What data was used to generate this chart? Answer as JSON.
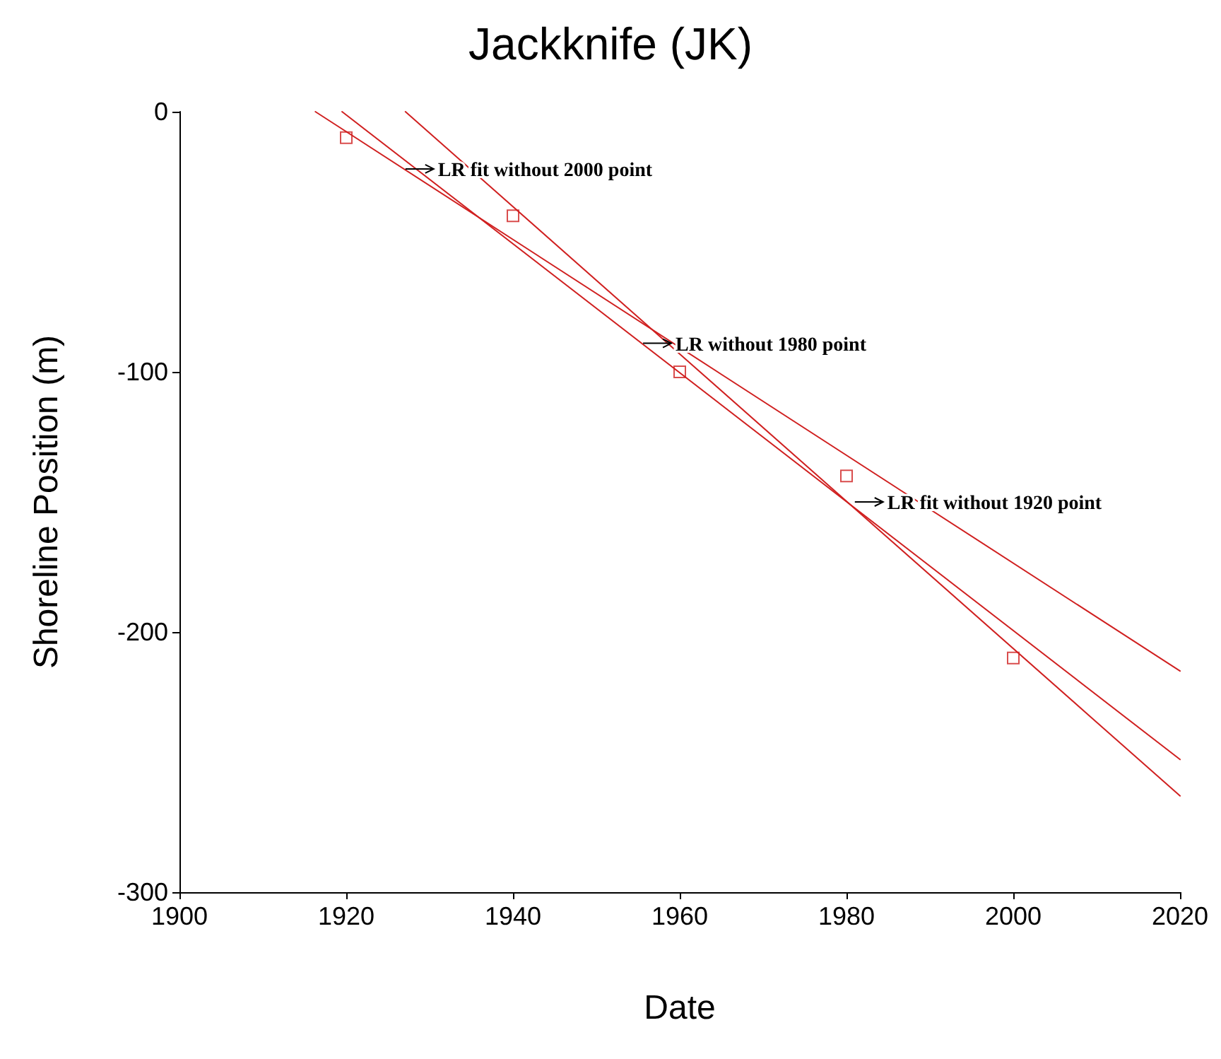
{
  "chart_data": {
    "type": "scatter",
    "title": "Jackknife (JK)",
    "xlabel": "Date",
    "ylabel": "Shoreline Position (m)",
    "xlim": [
      1900,
      2020
    ],
    "xticks": [
      1900,
      1920,
      1940,
      1960,
      1980,
      2000,
      2020
    ],
    "ylim": [
      -300,
      0
    ],
    "yticks": [
      -300,
      -200,
      -100,
      0
    ],
    "grid": false,
    "series": [
      {
        "color": "#d02020",
        "marker": "square",
        "x": [
          1920,
          1940,
          1960,
          1980,
          2000
        ],
        "values": [
          -10,
          -40,
          -100,
          -140,
          -210
        ]
      },
      {
        "type": "line",
        "color": "#d02020",
        "marker": "none",
        "x": [
          1916.3,
          2020
        ],
        "values": [
          0,
          -215
        ]
      },
      {
        "type": "line",
        "color": "#d02020",
        "marker": "none",
        "x": [
          1919.5,
          2020
        ],
        "values": [
          0,
          -249
        ]
      },
      {
        "type": "line",
        "color": "#d02020",
        "marker": "none",
        "x": [
          1927.1,
          2020
        ],
        "values": [
          0,
          -263
        ]
      }
    ],
    "annotations": [
      {
        "text": "LR fit without 2000 point",
        "x": 1927.1,
        "y": -22
      },
      {
        "text": "LR without 1980 point",
        "x": 1955.6,
        "y": -89
      },
      {
        "text": "LR fit without 1920 point",
        "x": 1981,
        "y": -150
      }
    ]
  }
}
